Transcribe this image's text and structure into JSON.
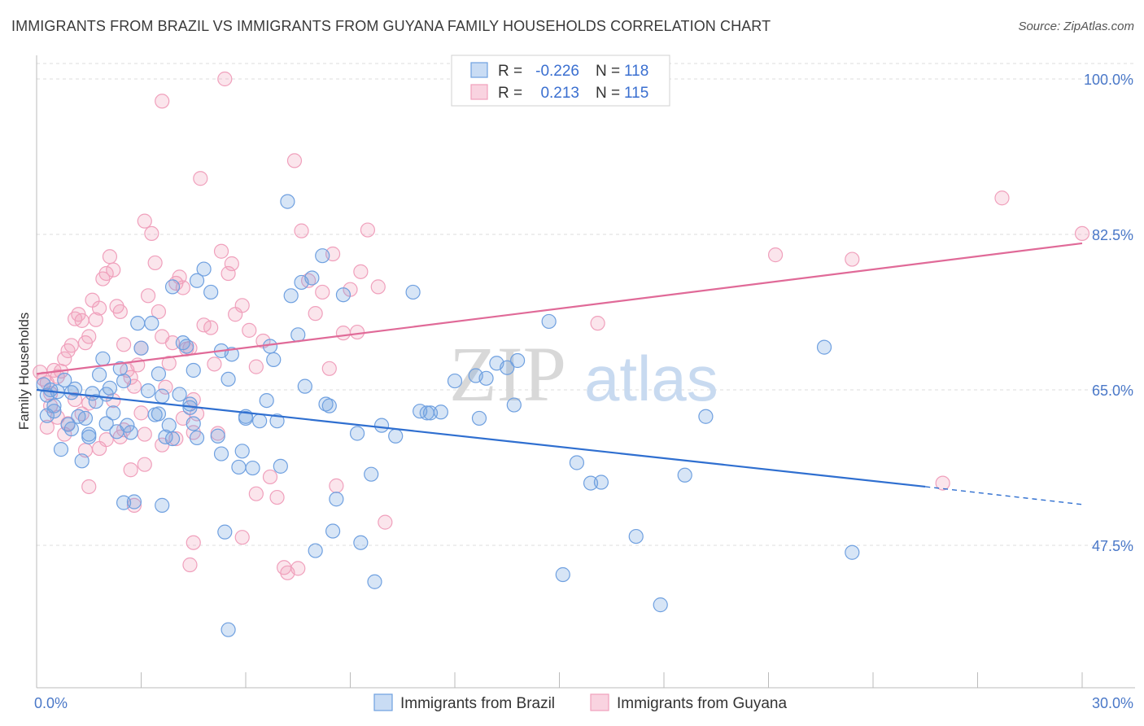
{
  "title": "IMMIGRANTS FROM BRAZIL VS IMMIGRANTS FROM GUYANA FAMILY HOUSEHOLDS CORRELATION CHART",
  "source": "Source: ZipAtlas.com",
  "watermark_zip": "ZIP",
  "watermark_atlas": "atlas",
  "colors": {
    "brazil": "#6fa0e0",
    "brazil_line": "#2f6fd0",
    "guyana": "#f0a0bc",
    "guyana_line": "#e06a98",
    "tick": "#4a78c8"
  },
  "legend": {
    "rows": [
      {
        "r_label": "R =",
        "r_value": "-0.226",
        "n_label": "N =",
        "n_value": "118"
      },
      {
        "r_label": "R =",
        "r_value": "0.213",
        "n_label": "N =",
        "n_value": "115"
      }
    ]
  },
  "bottom_legend": {
    "brazil": "Immigrants from Brazil",
    "guyana": "Immigrants from Guyana"
  },
  "chart_data": {
    "type": "scatter",
    "xlabel": "",
    "ylabel": "Family Households",
    "xlim": [
      0,
      30
    ],
    "ylim": [
      30,
      103
    ],
    "x_tick_labels": [
      "0.0%",
      "30.0%"
    ],
    "y_ticks": [
      47.5,
      65.0,
      82.5,
      100.0
    ],
    "y_tick_labels": [
      "47.5%",
      "65.0%",
      "82.5%",
      "100.0%"
    ],
    "series": [
      {
        "name": "Immigrants from Brazil",
        "r": -0.226,
        "n": 118,
        "trend": {
          "x_start": 0.0,
          "y_start": 65.0,
          "x_solid_end": 25.5,
          "y_solid_end": 54.1,
          "x_end": 30.0,
          "y_end": 52.1
        },
        "points": [
          [
            0.2,
            65.6
          ],
          [
            0.3,
            64.4
          ],
          [
            0.4,
            65.0
          ],
          [
            0.5,
            63.2
          ],
          [
            0.3,
            62.1
          ],
          [
            0.6,
            64.8
          ],
          [
            0.8,
            66.1
          ],
          [
            0.5,
            62.6
          ],
          [
            1.0,
            64.7
          ],
          [
            1.1,
            65.1
          ],
          [
            0.9,
            61.1
          ],
          [
            1.2,
            62.0
          ],
          [
            1.0,
            60.6
          ],
          [
            1.4,
            61.8
          ],
          [
            1.5,
            60.0
          ],
          [
            1.3,
            57.0
          ],
          [
            1.6,
            64.6
          ],
          [
            1.7,
            63.7
          ],
          [
            1.8,
            66.7
          ],
          [
            1.9,
            68.5
          ],
          [
            2.1,
            65.2
          ],
          [
            2.2,
            62.4
          ],
          [
            2.0,
            61.2
          ],
          [
            2.3,
            60.3
          ],
          [
            2.4,
            67.4
          ],
          [
            2.5,
            66.0
          ],
          [
            2.6,
            61.0
          ],
          [
            2.7,
            60.2
          ],
          [
            2.5,
            52.3
          ],
          [
            2.8,
            52.4
          ],
          [
            2.9,
            72.5
          ],
          [
            3.0,
            69.7
          ],
          [
            3.3,
            72.5
          ],
          [
            3.5,
            66.8
          ],
          [
            3.2,
            64.9
          ],
          [
            3.6,
            64.3
          ],
          [
            3.4,
            62.2
          ],
          [
            3.7,
            59.7
          ],
          [
            3.8,
            61.0
          ],
          [
            3.9,
            59.5
          ],
          [
            3.6,
            52.0
          ],
          [
            4.2,
            70.3
          ],
          [
            4.3,
            69.9
          ],
          [
            4.1,
            64.5
          ],
          [
            4.4,
            63.0
          ],
          [
            4.5,
            61.2
          ],
          [
            4.6,
            59.6
          ],
          [
            4.5,
            67.2
          ],
          [
            4.6,
            77.3
          ],
          [
            4.8,
            78.6
          ],
          [
            5.0,
            76.0
          ],
          [
            5.2,
            59.8
          ],
          [
            5.3,
            57.8
          ],
          [
            5.4,
            49.0
          ],
          [
            5.5,
            38.0
          ],
          [
            5.6,
            69.0
          ],
          [
            5.8,
            56.3
          ],
          [
            5.9,
            58.1
          ],
          [
            6.0,
            61.8
          ],
          [
            6.2,
            56.2
          ],
          [
            6.4,
            61.5
          ],
          [
            6.6,
            63.8
          ],
          [
            6.8,
            68.4
          ],
          [
            6.9,
            61.5
          ],
          [
            7.0,
            56.4
          ],
          [
            7.2,
            86.2
          ],
          [
            7.3,
            75.6
          ],
          [
            7.5,
            71.2
          ],
          [
            7.6,
            77.1
          ],
          [
            7.7,
            65.4
          ],
          [
            8.0,
            46.9
          ],
          [
            8.2,
            80.1
          ],
          [
            8.3,
            63.4
          ],
          [
            8.4,
            63.2
          ],
          [
            8.5,
            49.1
          ],
          [
            8.6,
            52.7
          ],
          [
            8.8,
            75.7
          ],
          [
            9.2,
            60.1
          ],
          [
            9.3,
            47.8
          ],
          [
            9.6,
            55.5
          ],
          [
            9.7,
            43.4
          ],
          [
            9.9,
            61.0
          ],
          [
            10.3,
            59.8
          ],
          [
            10.8,
            76.0
          ],
          [
            11.0,
            62.6
          ],
          [
            11.2,
            62.4
          ],
          [
            11.3,
            62.4
          ],
          [
            11.6,
            62.5
          ],
          [
            12.0,
            66.0
          ],
          [
            12.6,
            66.6
          ],
          [
            12.7,
            61.8
          ],
          [
            12.9,
            66.3
          ],
          [
            13.2,
            68.0
          ],
          [
            13.5,
            67.5
          ],
          [
            13.7,
            63.3
          ],
          [
            13.8,
            68.3
          ],
          [
            14.7,
            72.7
          ],
          [
            15.1,
            44.2
          ],
          [
            15.5,
            56.8
          ],
          [
            15.9,
            54.5
          ],
          [
            16.2,
            54.6
          ],
          [
            17.2,
            48.5
          ],
          [
            17.9,
            40.8
          ],
          [
            18.6,
            55.4
          ],
          [
            19.2,
            62.0
          ],
          [
            22.6,
            69.8
          ],
          [
            23.4,
            46.7
          ],
          [
            6.7,
            69.9
          ],
          [
            5.5,
            66.2
          ],
          [
            5.3,
            69.4
          ],
          [
            6.0,
            62.0
          ],
          [
            7.9,
            77.6
          ],
          [
            3.9,
            76.6
          ],
          [
            4.4,
            63.4
          ],
          [
            3.5,
            62.3
          ],
          [
            2.0,
            64.5
          ],
          [
            1.5,
            59.7
          ],
          [
            0.7,
            58.3
          ]
        ]
      },
      {
        "name": "Immigrants from Guyana",
        "r": 0.213,
        "n": 115,
        "trend": {
          "x_start": 0.0,
          "y_start": 66.8,
          "x_end": 30.0,
          "y_end": 81.5
        },
        "points": [
          [
            0.1,
            67.0
          ],
          [
            0.2,
            66.2
          ],
          [
            0.3,
            65.8
          ],
          [
            0.4,
            64.6
          ],
          [
            0.5,
            67.2
          ],
          [
            0.6,
            66.5
          ],
          [
            0.7,
            67.1
          ],
          [
            0.8,
            68.5
          ],
          [
            0.9,
            69.4
          ],
          [
            1.0,
            70.0
          ],
          [
            1.1,
            73.0
          ],
          [
            1.2,
            73.5
          ],
          [
            1.3,
            72.8
          ],
          [
            1.4,
            70.3
          ],
          [
            1.5,
            71.0
          ],
          [
            1.6,
            75.1
          ],
          [
            1.7,
            72.9
          ],
          [
            1.8,
            74.2
          ],
          [
            1.9,
            77.5
          ],
          [
            2.0,
            78.1
          ],
          [
            2.1,
            80.0
          ],
          [
            2.2,
            78.5
          ],
          [
            2.3,
            74.4
          ],
          [
            2.4,
            73.8
          ],
          [
            2.5,
            70.1
          ],
          [
            2.6,
            67.2
          ],
          [
            2.7,
            66.4
          ],
          [
            2.8,
            65.4
          ],
          [
            2.9,
            67.8
          ],
          [
            3.0,
            69.7
          ],
          [
            3.1,
            84.0
          ],
          [
            3.2,
            75.6
          ],
          [
            3.3,
            82.6
          ],
          [
            3.4,
            79.3
          ],
          [
            3.5,
            73.8
          ],
          [
            3.6,
            71.0
          ],
          [
            3.7,
            65.3
          ],
          [
            3.8,
            68.0
          ],
          [
            3.9,
            70.3
          ],
          [
            4.0,
            77.0
          ],
          [
            4.1,
            77.7
          ],
          [
            4.2,
            76.5
          ],
          [
            4.3,
            69.6
          ],
          [
            4.4,
            69.7
          ],
          [
            4.5,
            63.9
          ],
          [
            4.6,
            62.3
          ],
          [
            4.7,
            88.8
          ],
          [
            4.8,
            72.3
          ],
          [
            5.0,
            72.0
          ],
          [
            5.1,
            67.9
          ],
          [
            5.3,
            80.6
          ],
          [
            5.5,
            78.1
          ],
          [
            5.6,
            79.2
          ],
          [
            5.7,
            73.5
          ],
          [
            5.9,
            74.5
          ],
          [
            6.1,
            71.7
          ],
          [
            6.3,
            67.6
          ],
          [
            6.5,
            70.5
          ],
          [
            6.7,
            55.2
          ],
          [
            6.9,
            52.9
          ],
          [
            7.1,
            45.0
          ],
          [
            7.2,
            44.4
          ],
          [
            7.4,
            90.8
          ],
          [
            7.6,
            82.9
          ],
          [
            7.8,
            77.3
          ],
          [
            8.0,
            73.6
          ],
          [
            8.2,
            76.0
          ],
          [
            8.4,
            67.4
          ],
          [
            8.6,
            54.2
          ],
          [
            8.8,
            71.4
          ],
          [
            9.0,
            76.3
          ],
          [
            9.2,
            71.5
          ],
          [
            9.5,
            83.0
          ],
          [
            9.8,
            76.6
          ],
          [
            10.0,
            50.1
          ],
          [
            3.6,
            97.5
          ],
          [
            5.4,
            100.0
          ],
          [
            8.5,
            80.3
          ],
          [
            9.3,
            78.3
          ],
          [
            1.5,
            54.1
          ],
          [
            2.4,
            59.7
          ],
          [
            2.8,
            52.0
          ],
          [
            3.1,
            56.6
          ],
          [
            4.5,
            47.8
          ],
          [
            4.4,
            45.3
          ],
          [
            5.9,
            48.4
          ],
          [
            6.3,
            53.3
          ],
          [
            7.5,
            44.9
          ],
          [
            0.4,
            63.2
          ],
          [
            0.6,
            61.9
          ],
          [
            0.9,
            61.2
          ],
          [
            1.3,
            62.3
          ],
          [
            1.5,
            63.5
          ],
          [
            1.8,
            58.4
          ],
          [
            2.0,
            59.4
          ],
          [
            2.5,
            60.5
          ],
          [
            3.1,
            60.0
          ],
          [
            3.6,
            58.8
          ],
          [
            4.0,
            59.5
          ],
          [
            4.5,
            60.2
          ],
          [
            16.1,
            72.5
          ],
          [
            21.2,
            80.2
          ],
          [
            23.4,
            79.7
          ],
          [
            26.0,
            54.5
          ],
          [
            27.7,
            86.6
          ],
          [
            30.0,
            82.6
          ],
          [
            1.1,
            63.9
          ],
          [
            2.2,
            63.8
          ],
          [
            3.0,
            62.4
          ],
          [
            4.2,
            61.8
          ],
          [
            5.2,
            60.1
          ],
          [
            0.3,
            60.8
          ],
          [
            0.8,
            60.0
          ],
          [
            1.4,
            58.2
          ],
          [
            2.7,
            56.0
          ]
        ]
      }
    ]
  }
}
